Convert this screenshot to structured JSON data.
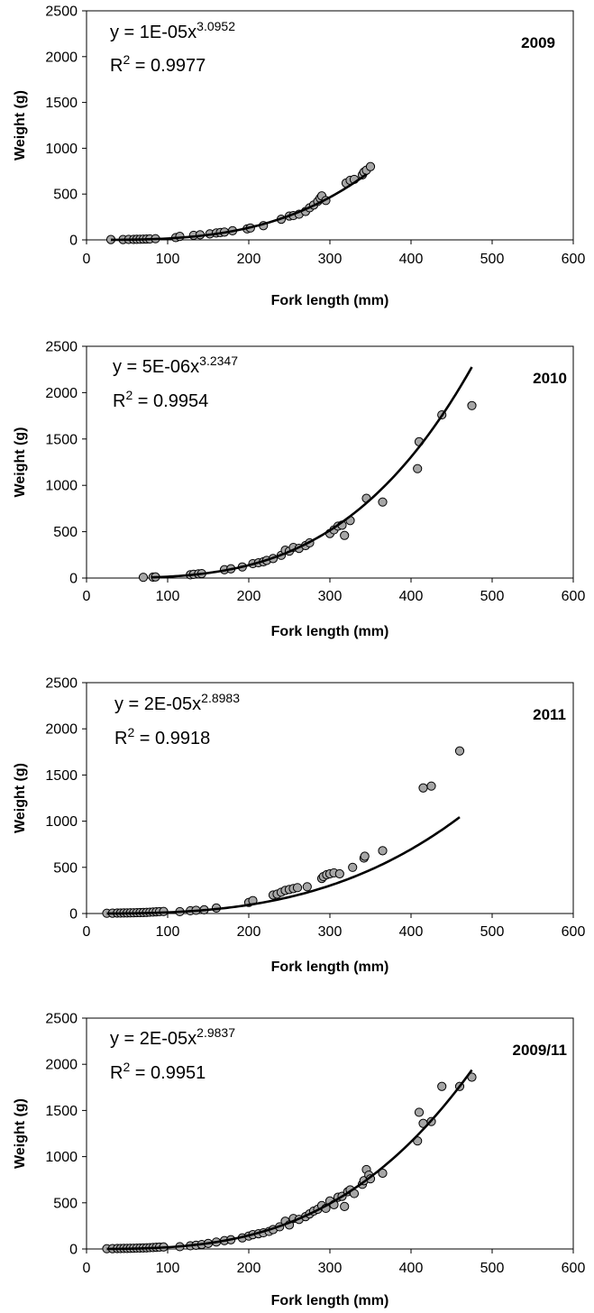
{
  "chart_data": [
    {
      "type": "scatter",
      "panel_label": "2009",
      "xlabel": "Fork length (mm)",
      "ylabel": "Weight (g)",
      "xlim": [
        0,
        600
      ],
      "ylim": [
        0,
        2500
      ],
      "xticks": [
        "0",
        "100",
        "200",
        "300",
        "400",
        "500",
        "600"
      ],
      "yticks": [
        "0",
        "500",
        "1000",
        "1500",
        "2000",
        "2500"
      ],
      "grid": false,
      "legend": "none",
      "equation": {
        "prefix": "y = 1E-05x",
        "exponent": "3.0952",
        "r2_prefix": "R",
        "r2_sup": "2",
        "r2_value": " = 0.9977"
      },
      "fit": {
        "a": 1e-05,
        "b": 3.0952,
        "x_range": [
          30,
          345
        ]
      },
      "x": [
        30,
        45,
        52,
        58,
        62,
        66,
        70,
        74,
        78,
        85,
        110,
        115,
        132,
        140,
        152,
        160,
        165,
        170,
        180,
        198,
        202,
        218,
        240,
        250,
        255,
        262,
        270,
        275,
        280,
        285,
        288,
        290,
        295,
        320,
        325,
        330,
        340,
        342,
        345,
        350
      ],
      "y": [
        4,
        4,
        5,
        5,
        6,
        7,
        8,
        9,
        10,
        13,
        25,
        38,
        50,
        55,
        65,
        75,
        80,
        85,
        100,
        120,
        130,
        155,
        225,
        260,
        265,
        280,
        310,
        350,
        380,
        420,
        455,
        480,
        430,
        620,
        650,
        660,
        710,
        740,
        760,
        800
      ]
    },
    {
      "type": "scatter",
      "panel_label": "2010",
      "xlabel": "Fork length (mm)",
      "ylabel": "Weight (g)",
      "xlim": [
        0,
        600
      ],
      "ylim": [
        0,
        2500
      ],
      "xticks": [
        "0",
        "100",
        "200",
        "300",
        "400",
        "500",
        "600"
      ],
      "yticks": [
        "0",
        "500",
        "1000",
        "1500",
        "2000",
        "2500"
      ],
      "grid": false,
      "legend": "none",
      "equation": {
        "prefix": "y = 5E-06x",
        "exponent": "3.2347",
        "r2_prefix": "R",
        "r2_sup": "2",
        "r2_value": " = 0.9954"
      },
      "fit": {
        "a": 5e-06,
        "b": 3.2347,
        "x_range": [
          80,
          475
        ]
      },
      "x": [
        70,
        82,
        85,
        128,
        132,
        138,
        142,
        170,
        178,
        192,
        205,
        212,
        218,
        222,
        230,
        240,
        245,
        250,
        255,
        262,
        270,
        275,
        300,
        305,
        310,
        315,
        318,
        325,
        345,
        365,
        408,
        410,
        438,
        475
      ],
      "y": [
        8,
        10,
        12,
        35,
        40,
        45,
        48,
        90,
        100,
        120,
        155,
        165,
        175,
        190,
        210,
        245,
        300,
        290,
        330,
        320,
        350,
        380,
        480,
        520,
        560,
        570,
        460,
        620,
        860,
        820,
        1180,
        1470,
        1760,
        1860
      ]
    },
    {
      "type": "scatter",
      "panel_label": "2011",
      "xlabel": "Fork length (mm)",
      "ylabel": "Weight (g)",
      "xlim": [
        0,
        600
      ],
      "ylim": [
        0,
        2500
      ],
      "xticks": [
        "0",
        "100",
        "200",
        "300",
        "400",
        "500",
        "600"
      ],
      "yticks": [
        "0",
        "500",
        "1000",
        "1500",
        "2000",
        "2500"
      ],
      "grid": false,
      "legend": "none",
      "equation": {
        "prefix": "y = 2E-05x",
        "exponent": "2.8983",
        "r2_prefix": "R",
        "r2_sup": "2",
        "r2_value": " = 0.9918"
      },
      "fit": {
        "a": 2e-05,
        "b": 2.8983,
        "x_range": [
          25,
          460
        ]
      },
      "x": [
        25,
        32,
        38,
        42,
        46,
        50,
        54,
        58,
        62,
        66,
        70,
        74,
        78,
        82,
        86,
        90,
        95,
        115,
        128,
        135,
        145,
        160,
        200,
        205,
        230,
        235,
        240,
        245,
        250,
        255,
        260,
        272,
        290,
        292,
        296,
        300,
        305,
        312,
        328,
        342,
        343,
        365,
        415,
        425,
        460
      ],
      "y": [
        3,
        4,
        5,
        5,
        6,
        6,
        7,
        8,
        9,
        10,
        11,
        12,
        14,
        16,
        18,
        20,
        22,
        20,
        30,
        35,
        40,
        60,
        120,
        140,
        200,
        210,
        230,
        250,
        260,
        270,
        280,
        290,
        380,
        400,
        420,
        430,
        440,
        430,
        500,
        600,
        620,
        680,
        1360,
        1380,
        1760
      ]
    },
    {
      "type": "scatter",
      "panel_label": "2009/11",
      "xlabel": "Fork length (mm)",
      "ylabel": "Weight (g)",
      "xlim": [
        0,
        600
      ],
      "ylim": [
        0,
        2500
      ],
      "xticks": [
        "0",
        "100",
        "200",
        "300",
        "400",
        "500",
        "600"
      ],
      "yticks": [
        "0",
        "500",
        "1000",
        "1500",
        "2000",
        "2500"
      ],
      "grid": false,
      "legend": "none",
      "equation": {
        "prefix": "y = 2E-05x",
        "exponent": "2.9837",
        "r2_prefix": "R",
        "r2_sup": "2",
        "r2_value": " = 0.9951"
      },
      "fit": {
        "a": 2e-05,
        "b": 2.9837,
        "x_range": [
          25,
          475
        ]
      },
      "x": [
        25,
        32,
        38,
        42,
        46,
        50,
        54,
        58,
        62,
        66,
        70,
        74,
        78,
        82,
        86,
        90,
        95,
        115,
        128,
        135,
        142,
        150,
        160,
        170,
        178,
        192,
        200,
        205,
        212,
        218,
        225,
        230,
        238,
        245,
        250,
        255,
        262,
        270,
        275,
        280,
        285,
        290,
        295,
        300,
        305,
        310,
        315,
        318,
        322,
        325,
        330,
        340,
        342,
        345,
        348,
        350,
        365,
        408,
        410,
        415,
        425,
        438,
        460,
        475
      ],
      "y": [
        3,
        4,
        5,
        5,
        6,
        6,
        7,
        8,
        9,
        10,
        11,
        12,
        14,
        16,
        18,
        20,
        22,
        25,
        35,
        40,
        48,
        60,
        75,
        90,
        100,
        120,
        140,
        155,
        165,
        175,
        190,
        210,
        240,
        300,
        260,
        330,
        320,
        350,
        380,
        410,
        430,
        470,
        440,
        520,
        480,
        560,
        570,
        460,
        620,
        640,
        600,
        700,
        740,
        860,
        800,
        760,
        820,
        1170,
        1480,
        1360,
        1380,
        1760,
        1760,
        1860
      ]
    }
  ]
}
